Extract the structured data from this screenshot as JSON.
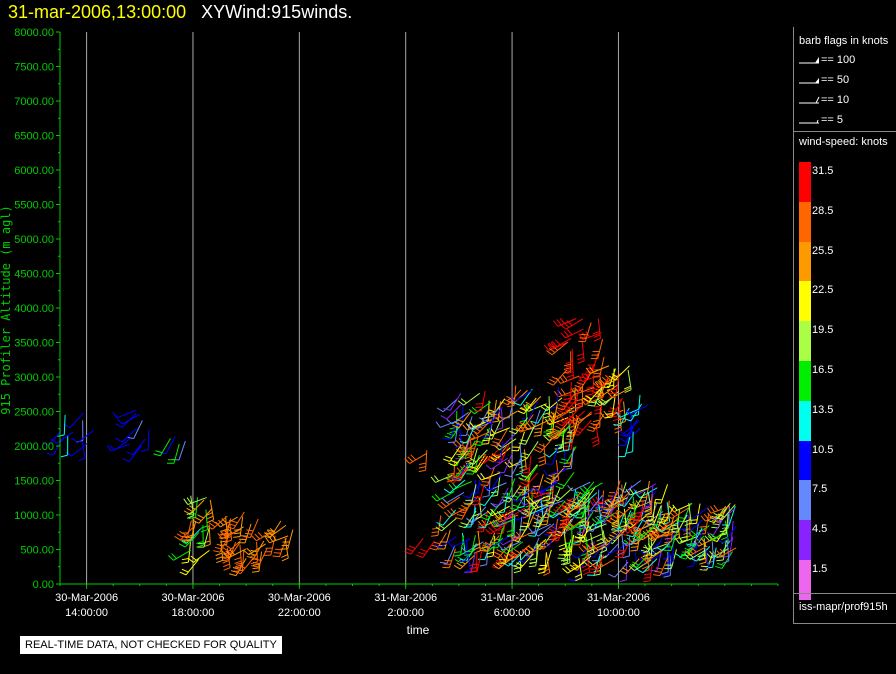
{
  "title": {
    "date": "31-mar-2006,13:00:00",
    "name": "XYWind:915winds."
  },
  "chart_data": {
    "type": "scatter",
    "ylabel": "915 Profiler Altitude (m agl)",
    "xlabel": "time",
    "ylim": [
      0,
      8000
    ],
    "yticks": [
      "0.00",
      "500.00",
      "1000.00",
      "1500.00",
      "2000.00",
      "2500.00",
      "3000.00",
      "3500.00",
      "4000.00",
      "4500.00",
      "5000.00",
      "5500.00",
      "6000.00",
      "6500.00",
      "7000.00",
      "7500.00",
      "8000.00"
    ],
    "xticks": [
      {
        "date": "30-Mar-2006",
        "time": "14:00:00",
        "hour": 14
      },
      {
        "date": "30-Mar-2006",
        "time": "18:00:00",
        "hour": 18
      },
      {
        "date": "30-Mar-2006",
        "time": "22:00:00",
        "hour": 22
      },
      {
        "date": "31-Mar-2006",
        "time": "2:00:00",
        "hour": 26
      },
      {
        "date": "31-Mar-2006",
        "time": "6:00:00",
        "hour": 30
      },
      {
        "date": "31-Mar-2006",
        "time": "10:00:00",
        "hour": 34
      }
    ],
    "xlim_hours": [
      13,
      40
    ],
    "grid": "vertical lines at x ticks",
    "wind_clusters": [
      {
        "hours": [
          12.9,
          14.3
        ],
        "alt": [
          1900,
          2600
        ],
        "speed": [
          7,
          13
        ],
        "n": 10
      },
      {
        "hours": [
          15.3,
          16.6
        ],
        "alt": [
          1950,
          2550
        ],
        "speed": [
          7,
          13
        ],
        "n": 10
      },
      {
        "hours": [
          16.9,
          17.8
        ],
        "alt": [
          1950,
          2150
        ],
        "speed": [
          8,
          17
        ],
        "n": 4
      },
      {
        "hours": [
          17.8,
          19.0
        ],
        "alt": [
          350,
          1400
        ],
        "speed": [
          14,
          30
        ],
        "n": 20
      },
      {
        "hours": [
          19.0,
          20.3
        ],
        "alt": [
          350,
          1050
        ],
        "speed": [
          25,
          30
        ],
        "n": 22
      },
      {
        "hours": [
          20.3,
          21.8
        ],
        "alt": [
          450,
          950
        ],
        "speed": [
          24,
          30
        ],
        "n": 14
      },
      {
        "hours": [
          26.5,
          26.8
        ],
        "alt": [
          1700,
          2000
        ],
        "speed": [
          26,
          29
        ],
        "n": 2
      },
      {
        "hours": [
          26.5,
          27.8
        ],
        "alt": [
          600,
          1000
        ],
        "speed": [
          26,
          31
        ],
        "n": 5
      },
      {
        "hours": [
          27.8,
          32.5
        ],
        "alt": [
          400,
          2900
        ],
        "speed": [
          5,
          32
        ],
        "n": 300
      },
      {
        "hours": [
          32.0,
          33.5
        ],
        "alt": [
          2300,
          3900
        ],
        "speed": [
          28,
          33
        ],
        "n": 40
      },
      {
        "hours": [
          33.3,
          34.5
        ],
        "alt": [
          2500,
          3200
        ],
        "speed": [
          20,
          33
        ],
        "n": 25
      },
      {
        "hours": [
          34.3,
          35.2
        ],
        "alt": [
          1800,
          2800
        ],
        "speed": [
          8,
          14
        ],
        "n": 12
      },
      {
        "hours": [
          32.5,
          36.0
        ],
        "alt": [
          300,
          1500
        ],
        "speed": [
          5,
          31
        ],
        "n": 160
      },
      {
        "hours": [
          36.0,
          38.5
        ],
        "alt": [
          400,
          1200
        ],
        "speed": [
          5,
          28
        ],
        "n": 70
      }
    ]
  },
  "legend": {
    "barb_title": "barb flags in knots",
    "barb_flags": [
      "== 100",
      "== 50",
      "== 10",
      "== 5"
    ],
    "speed_title": "wind-speed: knots",
    "speed_scale": [
      {
        "label": "31.5",
        "color": "#ff0000"
      },
      {
        "label": "28.5",
        "color": "#ff6600"
      },
      {
        "label": "25.5",
        "color": "#ff9900"
      },
      {
        "label": "22.5",
        "color": "#ffff00"
      },
      {
        "label": "19.5",
        "color": "#aaff44"
      },
      {
        "label": "16.5",
        "color": "#00ee00"
      },
      {
        "label": "13.5",
        "color": "#00ffee"
      },
      {
        "label": "10.5",
        "color": "#0000ff"
      },
      {
        "label": "7.5",
        "color": "#6688ff"
      },
      {
        "label": "4.5",
        "color": "#8822ff"
      },
      {
        "label": "1.5",
        "color": "#ee66ee"
      }
    ],
    "source": "iss-mapr/prof915h"
  },
  "quality_note": "REAL-TIME DATA, NOT CHECKED FOR QUALITY",
  "colors": {
    "axis": "#00cc00",
    "grid": "#aaaaaa",
    "date": "#ffff00"
  }
}
